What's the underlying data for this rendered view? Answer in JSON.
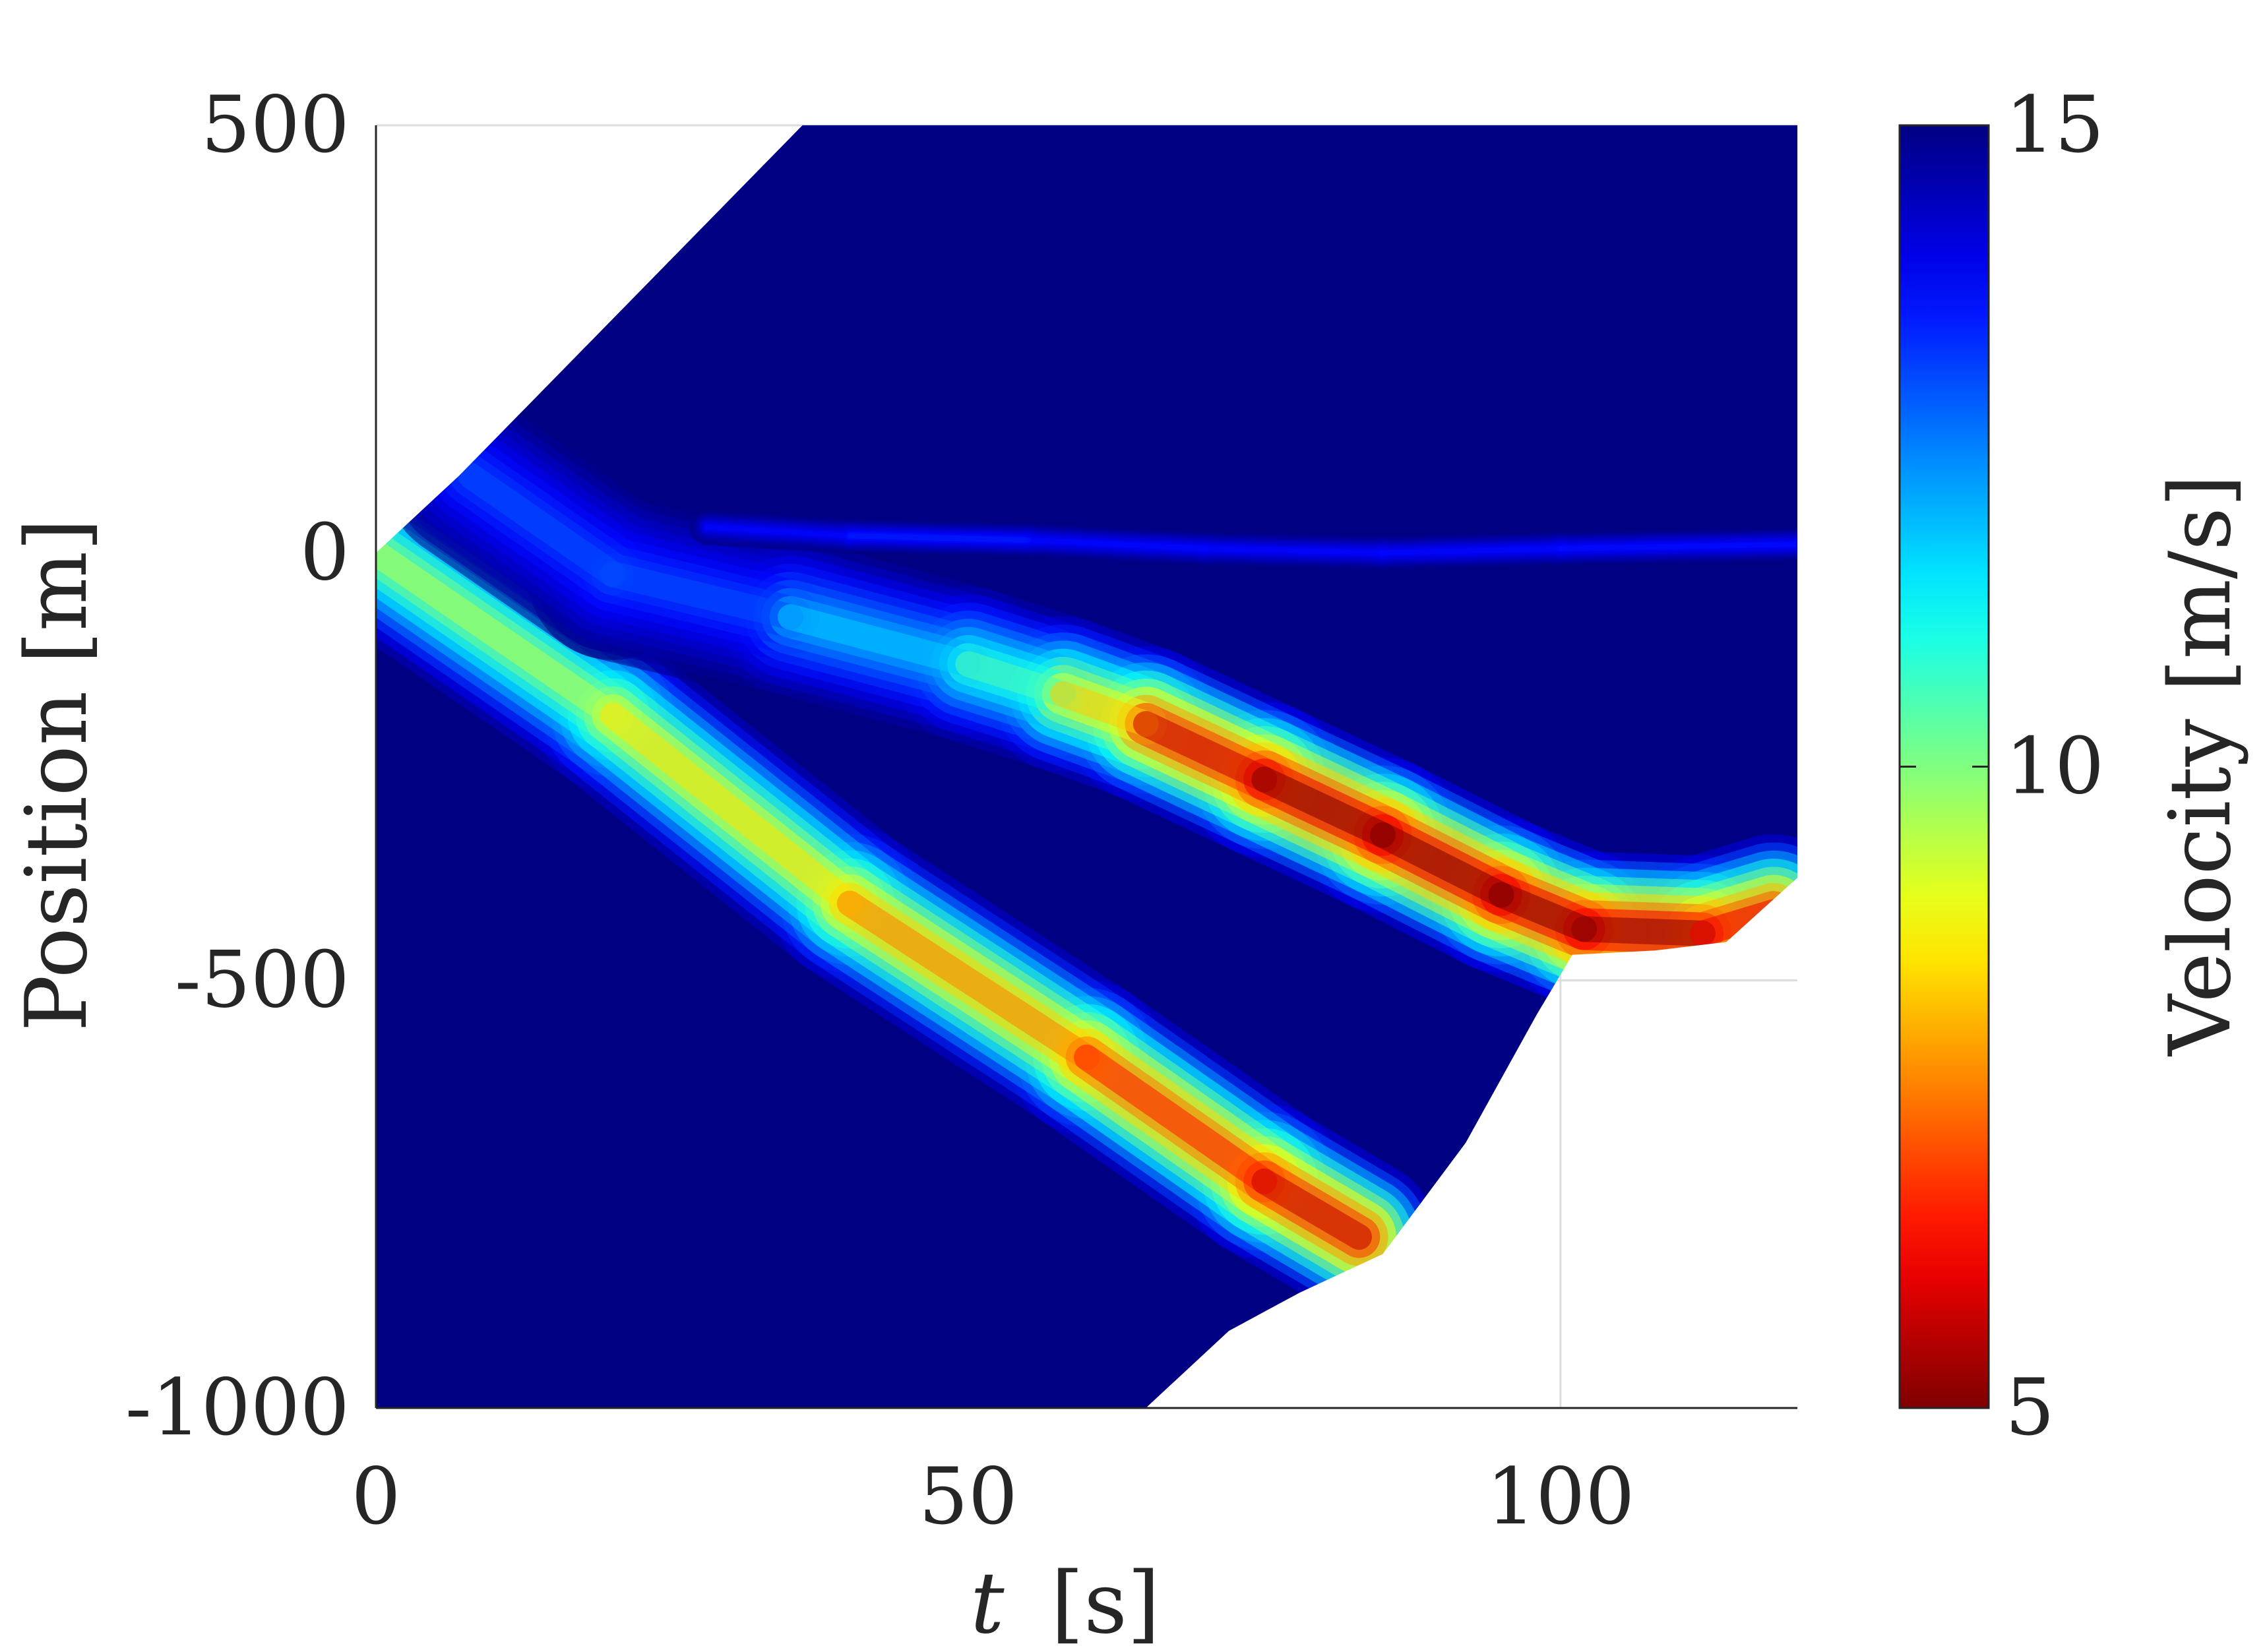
{
  "chart_data": {
    "type": "heatmap",
    "title": "",
    "xlabel": {
      "var": "t",
      "unit": "[s]"
    },
    "ylabel": "Position [m]",
    "xlim": [
      0,
      120
    ],
    "ylim": [
      -1000,
      500
    ],
    "xticks": [
      {
        "value": 0,
        "label": "0"
      },
      {
        "value": 50,
        "label": "50"
      },
      {
        "value": 100,
        "label": "100"
      }
    ],
    "yticks": [
      {
        "value": 500,
        "label": "500"
      },
      {
        "value": 0,
        "label": "0"
      },
      {
        "value": -500,
        "label": "-500"
      },
      {
        "value": -1000,
        "label": "-1000"
      }
    ],
    "grid": true,
    "colormap": "jet-reversed",
    "colorbar": {
      "label": "Velocity [m/s]",
      "range": [
        5,
        15
      ],
      "ticks": [
        {
          "value": 15,
          "label": "15"
        },
        {
          "value": 10,
          "label": "10"
        },
        {
          "value": 5,
          "label": "5"
        }
      ]
    },
    "data_region": {
      "top_edge": [
        [
          0,
          0
        ],
        [
          7,
          90
        ],
        [
          36,
          500
        ],
        [
          120,
          500
        ]
      ],
      "bottom_edge": [
        [
          0,
          -1000
        ],
        [
          65,
          -1000
        ],
        [
          72,
          -910
        ],
        [
          78,
          -865
        ],
        [
          85,
          -820
        ],
        [
          92,
          -690
        ],
        [
          98,
          -540
        ],
        [
          101,
          -470
        ],
        [
          108,
          -465
        ],
        [
          114,
          -455
        ],
        [
          120,
          -380
        ]
      ]
    },
    "bands": [
      {
        "name": "",
        "path": [
          [
            0,
            0
          ],
          [
            20,
            -190
          ],
          [
            40,
            -410
          ],
          [
            60,
            -590
          ],
          [
            75,
            -735
          ],
          [
            83,
            -800
          ]
        ],
        "min_velocity": [
          10,
          9,
          8,
          7,
          6,
          5.4
        ]
      },
      {
        "name": "",
        "path": [
          [
            8,
            90
          ],
          [
            20,
            -25
          ],
          [
            35,
            -75
          ],
          [
            50,
            -130
          ],
          [
            58,
            -165
          ],
          [
            65,
            -200
          ],
          [
            75,
            -265
          ],
          [
            85,
            -330
          ],
          [
            95,
            -400
          ],
          [
            102,
            -440
          ],
          [
            112,
            -445
          ],
          [
            118,
            -420
          ]
        ],
        "min_velocity": [
          12.5,
          13.5,
          12.5,
          11,
          10,
          6.5,
          5,
          5,
          5,
          5,
          5.2,
          7
        ]
      },
      {
        "name": "",
        "path": [
          [
            28,
            30
          ],
          [
            40,
            20
          ],
          [
            55,
            15
          ],
          [
            70,
            5
          ],
          [
            85,
            0
          ],
          [
            100,
            5
          ],
          [
            120,
            10
          ]
        ],
        "min_velocity": [
          14,
          13.4,
          13.5,
          13.8,
          13.6,
          13.7,
          13.5
        ]
      }
    ]
  }
}
